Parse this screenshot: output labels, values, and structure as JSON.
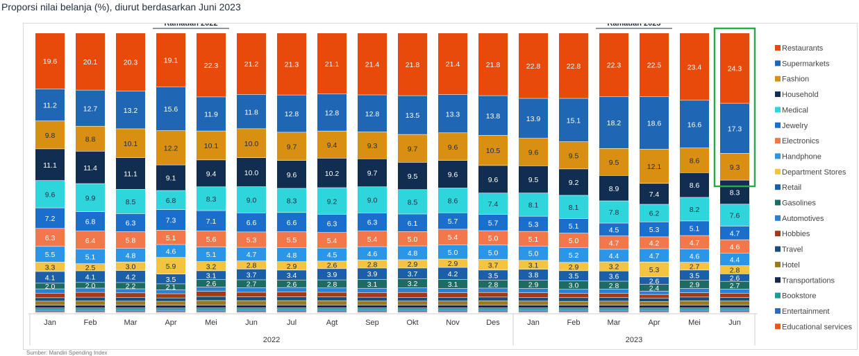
{
  "chart_data": {
    "type": "bar",
    "stacked": true,
    "title": "Proporsi nilai belanja (%), diurut berdasarkan Juni 2023",
    "categories": [
      "Jan",
      "Feb",
      "Mar",
      "Apr",
      "Mei",
      "Jun",
      "Jul",
      "Agt",
      "Sep",
      "Okt",
      "Nov",
      "Des",
      "Jan",
      "Feb",
      "Mar",
      "Apr",
      "Mei",
      "Jun"
    ],
    "years": [
      {
        "label": "2022",
        "start": 0,
        "end": 11
      },
      {
        "label": "2023",
        "start": 12,
        "end": 17
      }
    ],
    "annotations": [
      {
        "label": "Ramadan 2022",
        "start": 3,
        "end": 4
      },
      {
        "label": "Ramadan 2023",
        "start": 14,
        "end": 15
      }
    ],
    "highlight_index": 17,
    "ylim": [
      0,
      100
    ],
    "legend_position": "right",
    "series": [
      {
        "name": "Restaurants",
        "color": "#e84a0c",
        "values": [
          19.6,
          20.1,
          20.3,
          19.1,
          22.3,
          21.2,
          21.3,
          21.1,
          21.4,
          21.8,
          21.4,
          21.8,
          22.8,
          22.8,
          22.3,
          22.5,
          23.4,
          24.3
        ]
      },
      {
        "name": "Supermarkets",
        "color": "#1f66b4",
        "values": [
          11.2,
          12.7,
          13.2,
          15.6,
          11.9,
          11.8,
          12.8,
          12.8,
          12.8,
          13.5,
          13.3,
          13.8,
          13.9,
          15.1,
          18.2,
          18.6,
          16.6,
          17.3
        ]
      },
      {
        "name": "Fashion",
        "color": "#d88f12",
        "values": [
          9.8,
          8.8,
          10.1,
          12.2,
          10.1,
          10.0,
          9.7,
          9.4,
          9.3,
          9.7,
          9.6,
          10.5,
          9.6,
          9.5,
          9.5,
          12.1,
          8.6,
          9.3
        ]
      },
      {
        "name": "Household",
        "color": "#112e51",
        "values": [
          11.1,
          11.4,
          11.1,
          9.1,
          9.4,
          10.0,
          9.6,
          10.2,
          9.7,
          9.5,
          9.6,
          9.6,
          9.5,
          9.2,
          8.9,
          7.4,
          8.6,
          8.3
        ]
      },
      {
        "name": "Medical",
        "color": "#2ed6dc",
        "values": [
          9.6,
          9.9,
          8.5,
          6.8,
          8.3,
          9.0,
          8.3,
          9.2,
          9.0,
          8.5,
          8.6,
          7.4,
          8.1,
          8.1,
          7.8,
          6.2,
          8.2,
          7.6
        ]
      },
      {
        "name": "Jewelry",
        "color": "#1a6fcc",
        "values": [
          7.2,
          6.8,
          6.3,
          7.3,
          7.1,
          6.6,
          6.6,
          6.3,
          6.3,
          6.1,
          5.7,
          5.7,
          5.3,
          5.1,
          4.5,
          5.3,
          5.1,
          4.7
        ]
      },
      {
        "name": "Electronics",
        "color": "#f2784b",
        "values": [
          6.3,
          6.4,
          5.8,
          5.1,
          5.6,
          5.3,
          5.5,
          5.4,
          5.4,
          5.0,
          5.4,
          5.0,
          5.1,
          5.0,
          4.7,
          4.2,
          4.7,
          4.6
        ]
      },
      {
        "name": "Handphone",
        "color": "#2b95e8",
        "values": [
          5.5,
          5.1,
          4.8,
          4.6,
          5.1,
          4.7,
          4.8,
          4.5,
          4.6,
          4.8,
          5.0,
          5.0,
          5.0,
          5.2,
          4.4,
          4.7,
          4.6,
          4.4
        ]
      },
      {
        "name": "Department Stores",
        "color": "#f5c342",
        "values": [
          3.3,
          2.5,
          3.0,
          5.9,
          3.2,
          2.8,
          2.9,
          2.6,
          2.8,
          2.9,
          2.9,
          3.7,
          3.1,
          2.9,
          3.2,
          5.3,
          2.7,
          2.8
        ]
      },
      {
        "name": "Retail",
        "color": "#1b5fa8",
        "values": [
          4.1,
          4.1,
          4.2,
          3.5,
          3.1,
          3.7,
          3.4,
          3.9,
          3.9,
          3.7,
          4.2,
          3.5,
          3.8,
          3.5,
          3.6,
          2.6,
          3.5,
          2.6
        ]
      },
      {
        "name": "Gasolines",
        "color": "#1d6b63",
        "values": [
          2.0,
          2.0,
          2.2,
          2.1,
          2.6,
          2.7,
          2.6,
          2.8,
          3.1,
          3.2,
          3.1,
          2.8,
          2.9,
          3.0,
          2.8,
          2.4,
          2.9,
          2.7
        ]
      },
      {
        "name": "Automotives",
        "color": "#2f7fd1",
        "values": [
          1.5,
          1.5,
          1.4,
          1.4,
          1.5,
          1.6,
          1.5,
          1.5,
          1.5,
          1.6,
          1.5,
          1.5,
          1.5,
          1.4,
          1.4,
          1.2,
          1.5,
          1.4
        ]
      },
      {
        "name": "Hobbies",
        "color": "#a33a17",
        "values": [
          1.6,
          1.7,
          1.6,
          1.5,
          1.8,
          1.6,
          1.7,
          1.6,
          1.6,
          1.7,
          1.6,
          1.6,
          1.6,
          1.5,
          1.5,
          1.3,
          1.5,
          1.5
        ]
      },
      {
        "name": "Travel",
        "color": "#1a4e7a",
        "values": [
          1.2,
          1.3,
          1.3,
          1.2,
          1.4,
          1.3,
          1.3,
          1.3,
          1.3,
          1.3,
          1.3,
          1.3,
          1.3,
          1.3,
          1.3,
          1.2,
          1.3,
          1.2
        ]
      },
      {
        "name": "Hotel",
        "color": "#9a7a1e",
        "values": [
          1.4,
          1.5,
          1.4,
          1.4,
          1.6,
          1.5,
          1.5,
          1.5,
          1.4,
          1.4,
          1.4,
          1.5,
          1.4,
          1.3,
          1.4,
          1.3,
          1.5,
          1.4
        ]
      },
      {
        "name": "Transportations",
        "color": "#16294a",
        "values": [
          1.0,
          1.0,
          1.0,
          1.0,
          1.0,
          1.0,
          1.0,
          1.0,
          1.0,
          1.0,
          1.0,
          1.0,
          1.0,
          1.0,
          1.0,
          1.0,
          1.0,
          1.0
        ]
      },
      {
        "name": "Bookstore",
        "color": "#1a9a9a",
        "values": [
          0.8,
          0.8,
          0.8,
          0.8,
          0.8,
          0.8,
          0.8,
          0.8,
          0.8,
          0.8,
          0.8,
          0.8,
          0.8,
          0.8,
          0.8,
          0.8,
          0.8,
          0.8
        ]
      },
      {
        "name": "Entertainment",
        "color": "#2a6bbd",
        "values": [
          0.6,
          0.6,
          0.6,
          0.6,
          0.6,
          0.6,
          0.6,
          0.6,
          0.6,
          0.6,
          0.6,
          0.6,
          0.6,
          0.6,
          0.6,
          0.6,
          0.6,
          0.6
        ]
      },
      {
        "name": "Educational services",
        "color": "#e8551a",
        "values": [
          0.3,
          0.3,
          0.3,
          0.3,
          0.3,
          0.3,
          0.3,
          0.3,
          0.3,
          0.3,
          0.3,
          0.3,
          0.3,
          0.3,
          0.3,
          0.3,
          0.3,
          0.3
        ]
      }
    ]
  },
  "footer": "Sumber: Mandiri Spending Index"
}
